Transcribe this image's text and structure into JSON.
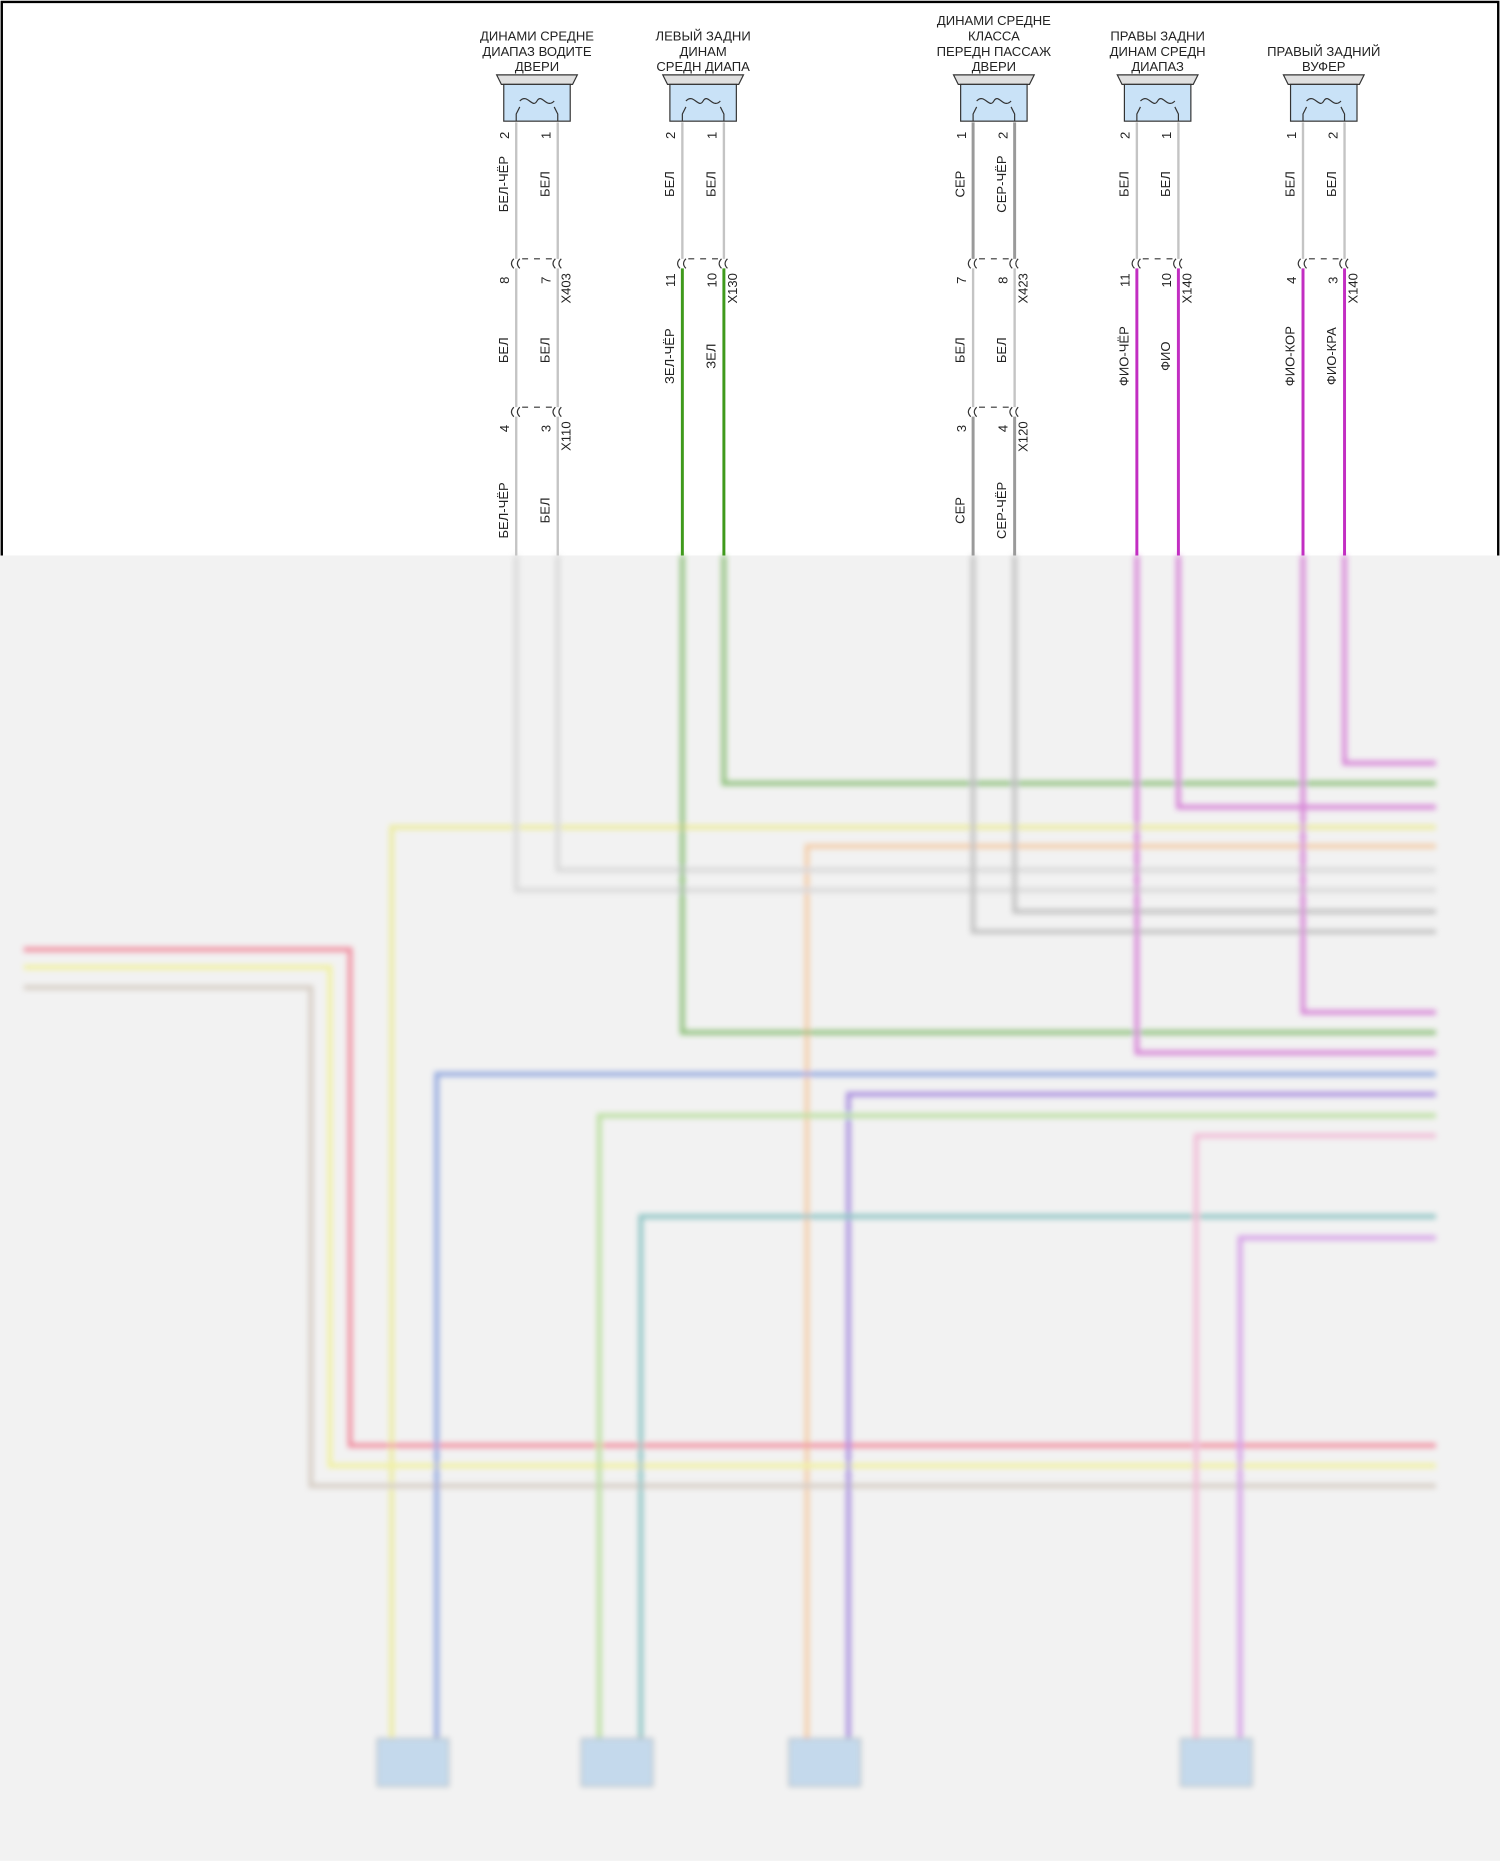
{
  "speakers": [
    {
      "label": [
        "ДИНАМИ СРЕДНЕ",
        "ДИАПАЗ ВОДИТЕ",
        "ДВЕРИ"
      ],
      "pins": [
        "2",
        "1"
      ],
      "segments": [
        {
          "labels": [
            "БЕЛ-ЧЁР",
            "БЕЛ"
          ],
          "colors": [
            "#c4c4c4",
            "#c4c4c4"
          ]
        },
        {
          "labels": [
            "БЕЛ",
            "БЕЛ"
          ],
          "colors": [
            "#c4c4c4",
            "#c4c4c4"
          ]
        },
        {
          "labels": [
            "БЕЛ-ЧЁР",
            "БЕЛ"
          ],
          "colors": [
            "#c4c4c4",
            "#c4c4c4"
          ]
        }
      ],
      "connectors": [
        {
          "name": "X403",
          "pins": [
            "8",
            "7"
          ]
        },
        {
          "name": "X110",
          "pins": [
            "4",
            "3"
          ]
        }
      ]
    },
    {
      "label": [
        "ЛЕВЫЙ ЗАДНИ",
        "ДИНАМ",
        "СРЕДН ДИАПА"
      ],
      "pins": [
        "2",
        "1"
      ],
      "segments": [
        {
          "labels": [
            "БЕЛ",
            "БЕЛ"
          ],
          "colors": [
            "#c4c4c4",
            "#c4c4c4"
          ]
        },
        {
          "labels": [
            "ЗЕЛ-ЧЁР",
            "ЗЕЛ"
          ],
          "colors": [
            "#3f9a1c",
            "#3f9a1c"
          ]
        }
      ],
      "connectors": [
        {
          "name": "X130",
          "pins": [
            "11",
            "10"
          ]
        }
      ]
    },
    {
      "label": [
        "ДИНАМИ СРЕДНЕ",
        "КЛАССА",
        "ПЕРЕДН ПАССАЖ",
        "ДВЕРИ"
      ],
      "pins": [
        "1",
        "2"
      ],
      "segments": [
        {
          "labels": [
            "СЕР",
            "СЕР-ЧЁР"
          ],
          "colors": [
            "#9a9a9a",
            "#9a9a9a"
          ]
        },
        {
          "labels": [
            "БЕЛ",
            "БЕЛ"
          ],
          "colors": [
            "#c4c4c4",
            "#c4c4c4"
          ]
        },
        {
          "labels": [
            "СЕР",
            "СЕР-ЧЁР"
          ],
          "colors": [
            "#9a9a9a",
            "#9a9a9a"
          ]
        }
      ],
      "connectors": [
        {
          "name": "X423",
          "pins": [
            "7",
            "8"
          ]
        },
        {
          "name": "X120",
          "pins": [
            "3",
            "4"
          ]
        }
      ]
    },
    {
      "label": [
        "ПРАВЫ ЗАДНИ",
        "ДИНАМ СРЕДН",
        "ДИАПАЗ"
      ],
      "pins": [
        "2",
        "1"
      ],
      "segments": [
        {
          "labels": [
            "БЕЛ",
            "БЕЛ"
          ],
          "colors": [
            "#c4c4c4",
            "#c4c4c4"
          ]
        },
        {
          "labels": [
            "ФИО-ЧЁР",
            "ФИО"
          ],
          "colors": [
            "#c22ec2",
            "#c22ec2"
          ]
        }
      ],
      "connectors": [
        {
          "name": "X140",
          "pins": [
            "11",
            "10"
          ]
        }
      ]
    },
    {
      "label": [
        "ПРАВЫЙ ЗАДНИЙ",
        "ВУФЕР"
      ],
      "pins": [
        "1",
        "2"
      ],
      "segments": [
        {
          "labels": [
            "БЕЛ",
            "БЕЛ"
          ],
          "colors": [
            "#c4c4c4",
            "#c4c4c4"
          ]
        },
        {
          "labels": [
            "ФИО-КОР",
            "ФИО-КРА"
          ],
          "colors": [
            "#c22ec2",
            "#c22ec2"
          ]
        }
      ],
      "connectors": [
        {
          "name": "X140",
          "pins": [
            "4",
            "3"
          ]
        }
      ]
    }
  ]
}
